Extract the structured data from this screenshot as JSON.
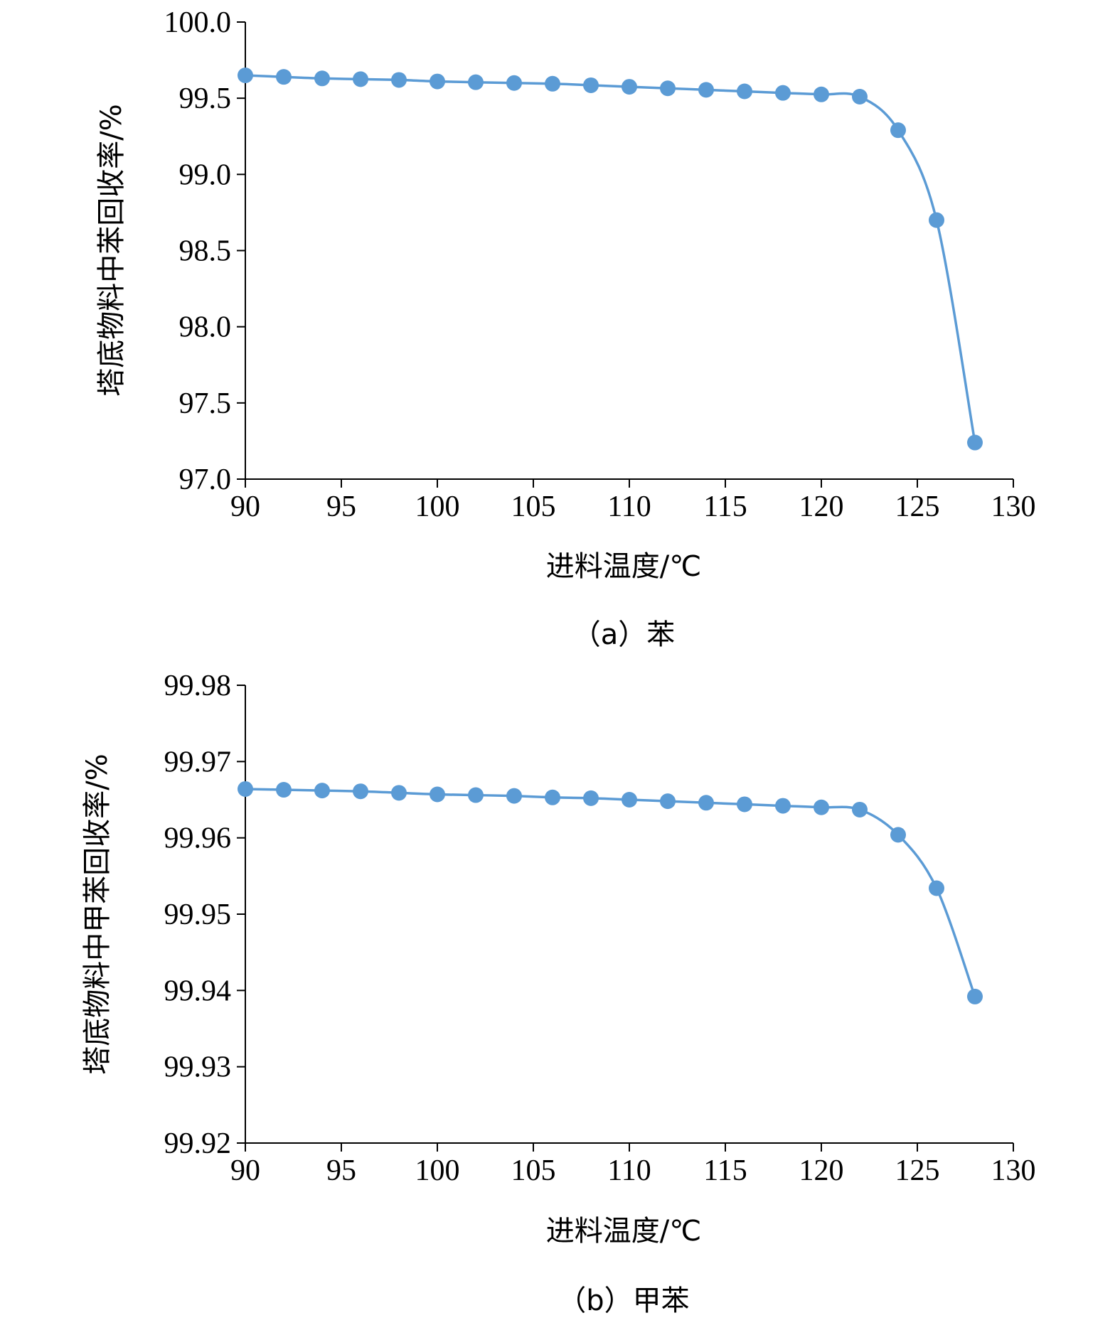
{
  "chart_data": [
    {
      "type": "scatter",
      "panel": "a",
      "caption": "（a）苯",
      "xlabel": "进料温度/℃",
      "ylabel": "塔底物料中苯回收率/%",
      "xlim": [
        90,
        130
      ],
      "ylim": [
        97.0,
        100.0
      ],
      "x_ticks": [
        "90",
        "95",
        "100",
        "105",
        "110",
        "115",
        "120",
        "125",
        "130"
      ],
      "y_ticks": [
        "97.0",
        "97.5",
        "98.0",
        "98.5",
        "99.0",
        "99.5",
        "100.0"
      ],
      "series": [
        {
          "color": "#5b9bd5",
          "marker": "circle",
          "line": "smooth",
          "x": [
            90,
            92,
            94,
            96,
            98,
            100,
            102,
            104,
            106,
            108,
            110,
            112,
            114,
            116,
            118,
            120,
            122,
            124,
            126,
            128
          ],
          "y": [
            99.65,
            99.64,
            99.63,
            99.625,
            99.62,
            99.61,
            99.605,
            99.6,
            99.595,
            99.585,
            99.575,
            99.565,
            99.555,
            99.545,
            99.535,
            99.525,
            99.51,
            99.29,
            98.7,
            97.24
          ]
        }
      ]
    },
    {
      "type": "scatter",
      "panel": "b",
      "caption": "（b）甲苯",
      "xlabel": "进料温度/℃",
      "ylabel": "塔底物料中甲苯回收率/%",
      "xlim": [
        90,
        130
      ],
      "ylim": [
        99.92,
        99.98
      ],
      "x_ticks": [
        "90",
        "95",
        "100",
        "105",
        "110",
        "115",
        "120",
        "125",
        "130"
      ],
      "y_ticks": [
        "99.92",
        "99.93",
        "99.94",
        "99.95",
        "99.96",
        "99.97",
        "99.98"
      ],
      "series": [
        {
          "color": "#5b9bd5",
          "marker": "circle",
          "line": "smooth",
          "x": [
            90,
            92,
            94,
            96,
            98,
            100,
            102,
            104,
            106,
            108,
            110,
            112,
            114,
            116,
            118,
            120,
            122,
            124,
            126,
            128
          ],
          "y": [
            99.9664,
            99.9663,
            99.9662,
            99.9661,
            99.9659,
            99.9657,
            99.9656,
            99.9655,
            99.9653,
            99.9652,
            99.965,
            99.9648,
            99.9646,
            99.9644,
            99.9642,
            99.964,
            99.9637,
            99.9604,
            99.9534,
            99.9392
          ]
        }
      ]
    }
  ]
}
